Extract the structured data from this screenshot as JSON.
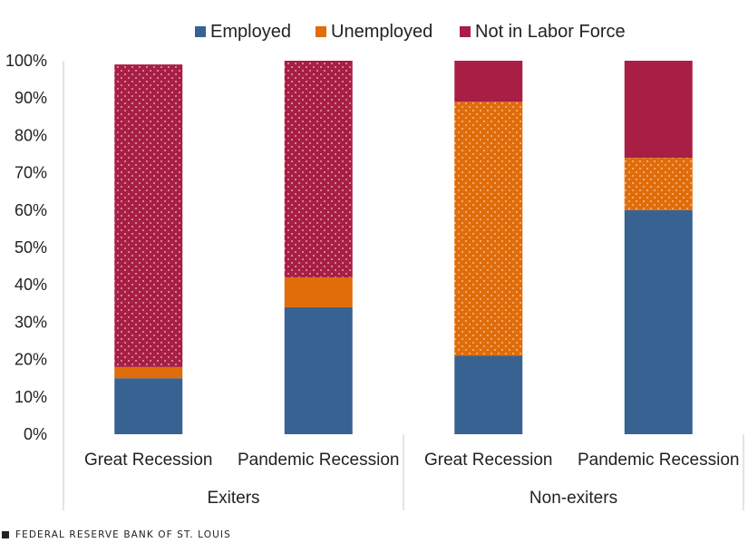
{
  "chart_data": {
    "type": "bar",
    "stacked": true,
    "groups": [
      {
        "label": "Exiters",
        "categories": [
          "Great Recession",
          "Pandemic Recession"
        ]
      },
      {
        "label": "Non-exiters",
        "categories": [
          "Great Recession",
          "Pandemic Recession"
        ]
      }
    ],
    "series": [
      {
        "name": "Employed",
        "color": "#386292",
        "pattern": "solid",
        "values": [
          15,
          34,
          21,
          60
        ]
      },
      {
        "name": "Unemployed",
        "color": "#e06c0a",
        "pattern_first_bars": [
          false,
          false,
          true,
          true
        ],
        "values": [
          3,
          8,
          68,
          14
        ]
      },
      {
        "name": "Not in Labor Force",
        "color": "#a81e44",
        "pattern_first_bars": [
          true,
          true,
          false,
          false
        ],
        "values": [
          81,
          58,
          11,
          26
        ]
      }
    ],
    "y_ticks": [
      "0%",
      "10%",
      "20%",
      "30%",
      "40%",
      "50%",
      "60%",
      "70%",
      "80%",
      "90%",
      "100%"
    ],
    "ylim": [
      0,
      100
    ],
    "legend_position": "top"
  },
  "footer": {
    "source": "FEDERAL RESERVE BANK OF ST. LOUIS"
  }
}
